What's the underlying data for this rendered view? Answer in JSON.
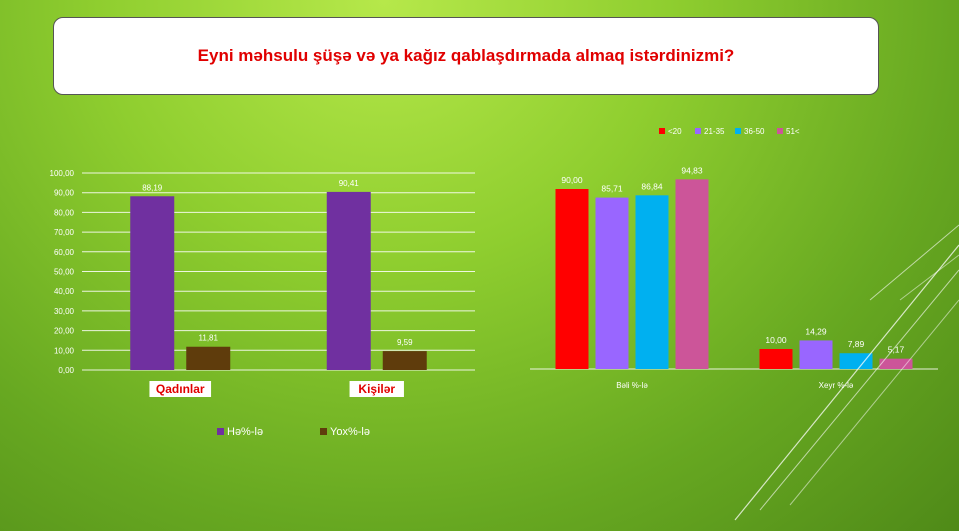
{
  "slide": {
    "title": "Eyni məhsulu şüşə və ya kağız qablaşdırmada almaq istərdinizmi?"
  },
  "chart_data": [
    {
      "type": "bar",
      "categories": [
        "Qadınlar",
        "Kişilər"
      ],
      "series": [
        {
          "name": "Hə%-lə",
          "values": [
            88.19,
            90.41
          ],
          "color": "#7030a0"
        },
        {
          "name": "Yox%-lə",
          "values": [
            11.81,
            9.59
          ],
          "color": "#5f3c0c"
        }
      ],
      "value_labels": [
        [
          "88,19",
          "90,41"
        ],
        [
          "11,81",
          "9,59"
        ]
      ],
      "ylim": [
        0,
        100
      ],
      "yticks": [
        "0,00",
        "10,00",
        "20,00",
        "30,00",
        "40,00",
        "50,00",
        "60,00",
        "70,00",
        "80,00",
        "90,00",
        "100,00"
      ],
      "grid": true,
      "legend": "bottom",
      "category_label_color": "#e00000"
    },
    {
      "type": "bar",
      "categories": [
        "Bəli %-lə",
        "Xeyr %-lə"
      ],
      "series": [
        {
          "name": "<20",
          "values": [
            90.0,
            10.0
          ],
          "color": "#ff0000"
        },
        {
          "name": "21-35",
          "values": [
            85.71,
            14.29
          ],
          "color": "#9966ff"
        },
        {
          "name": "36-50",
          "values": [
            86.84,
            7.89
          ],
          "color": "#00b0f0"
        },
        {
          "name": "51<",
          "values": [
            94.83,
            5.17
          ],
          "color": "#cc5599"
        }
      ],
      "value_labels": [
        [
          "90,00",
          "10,00"
        ],
        [
          "85,71",
          "14,29"
        ],
        [
          "86,84",
          "7,89"
        ],
        [
          "94,83",
          "5,17"
        ]
      ],
      "ylim": [
        0,
        100
      ],
      "grid": false,
      "legend": "top"
    }
  ]
}
